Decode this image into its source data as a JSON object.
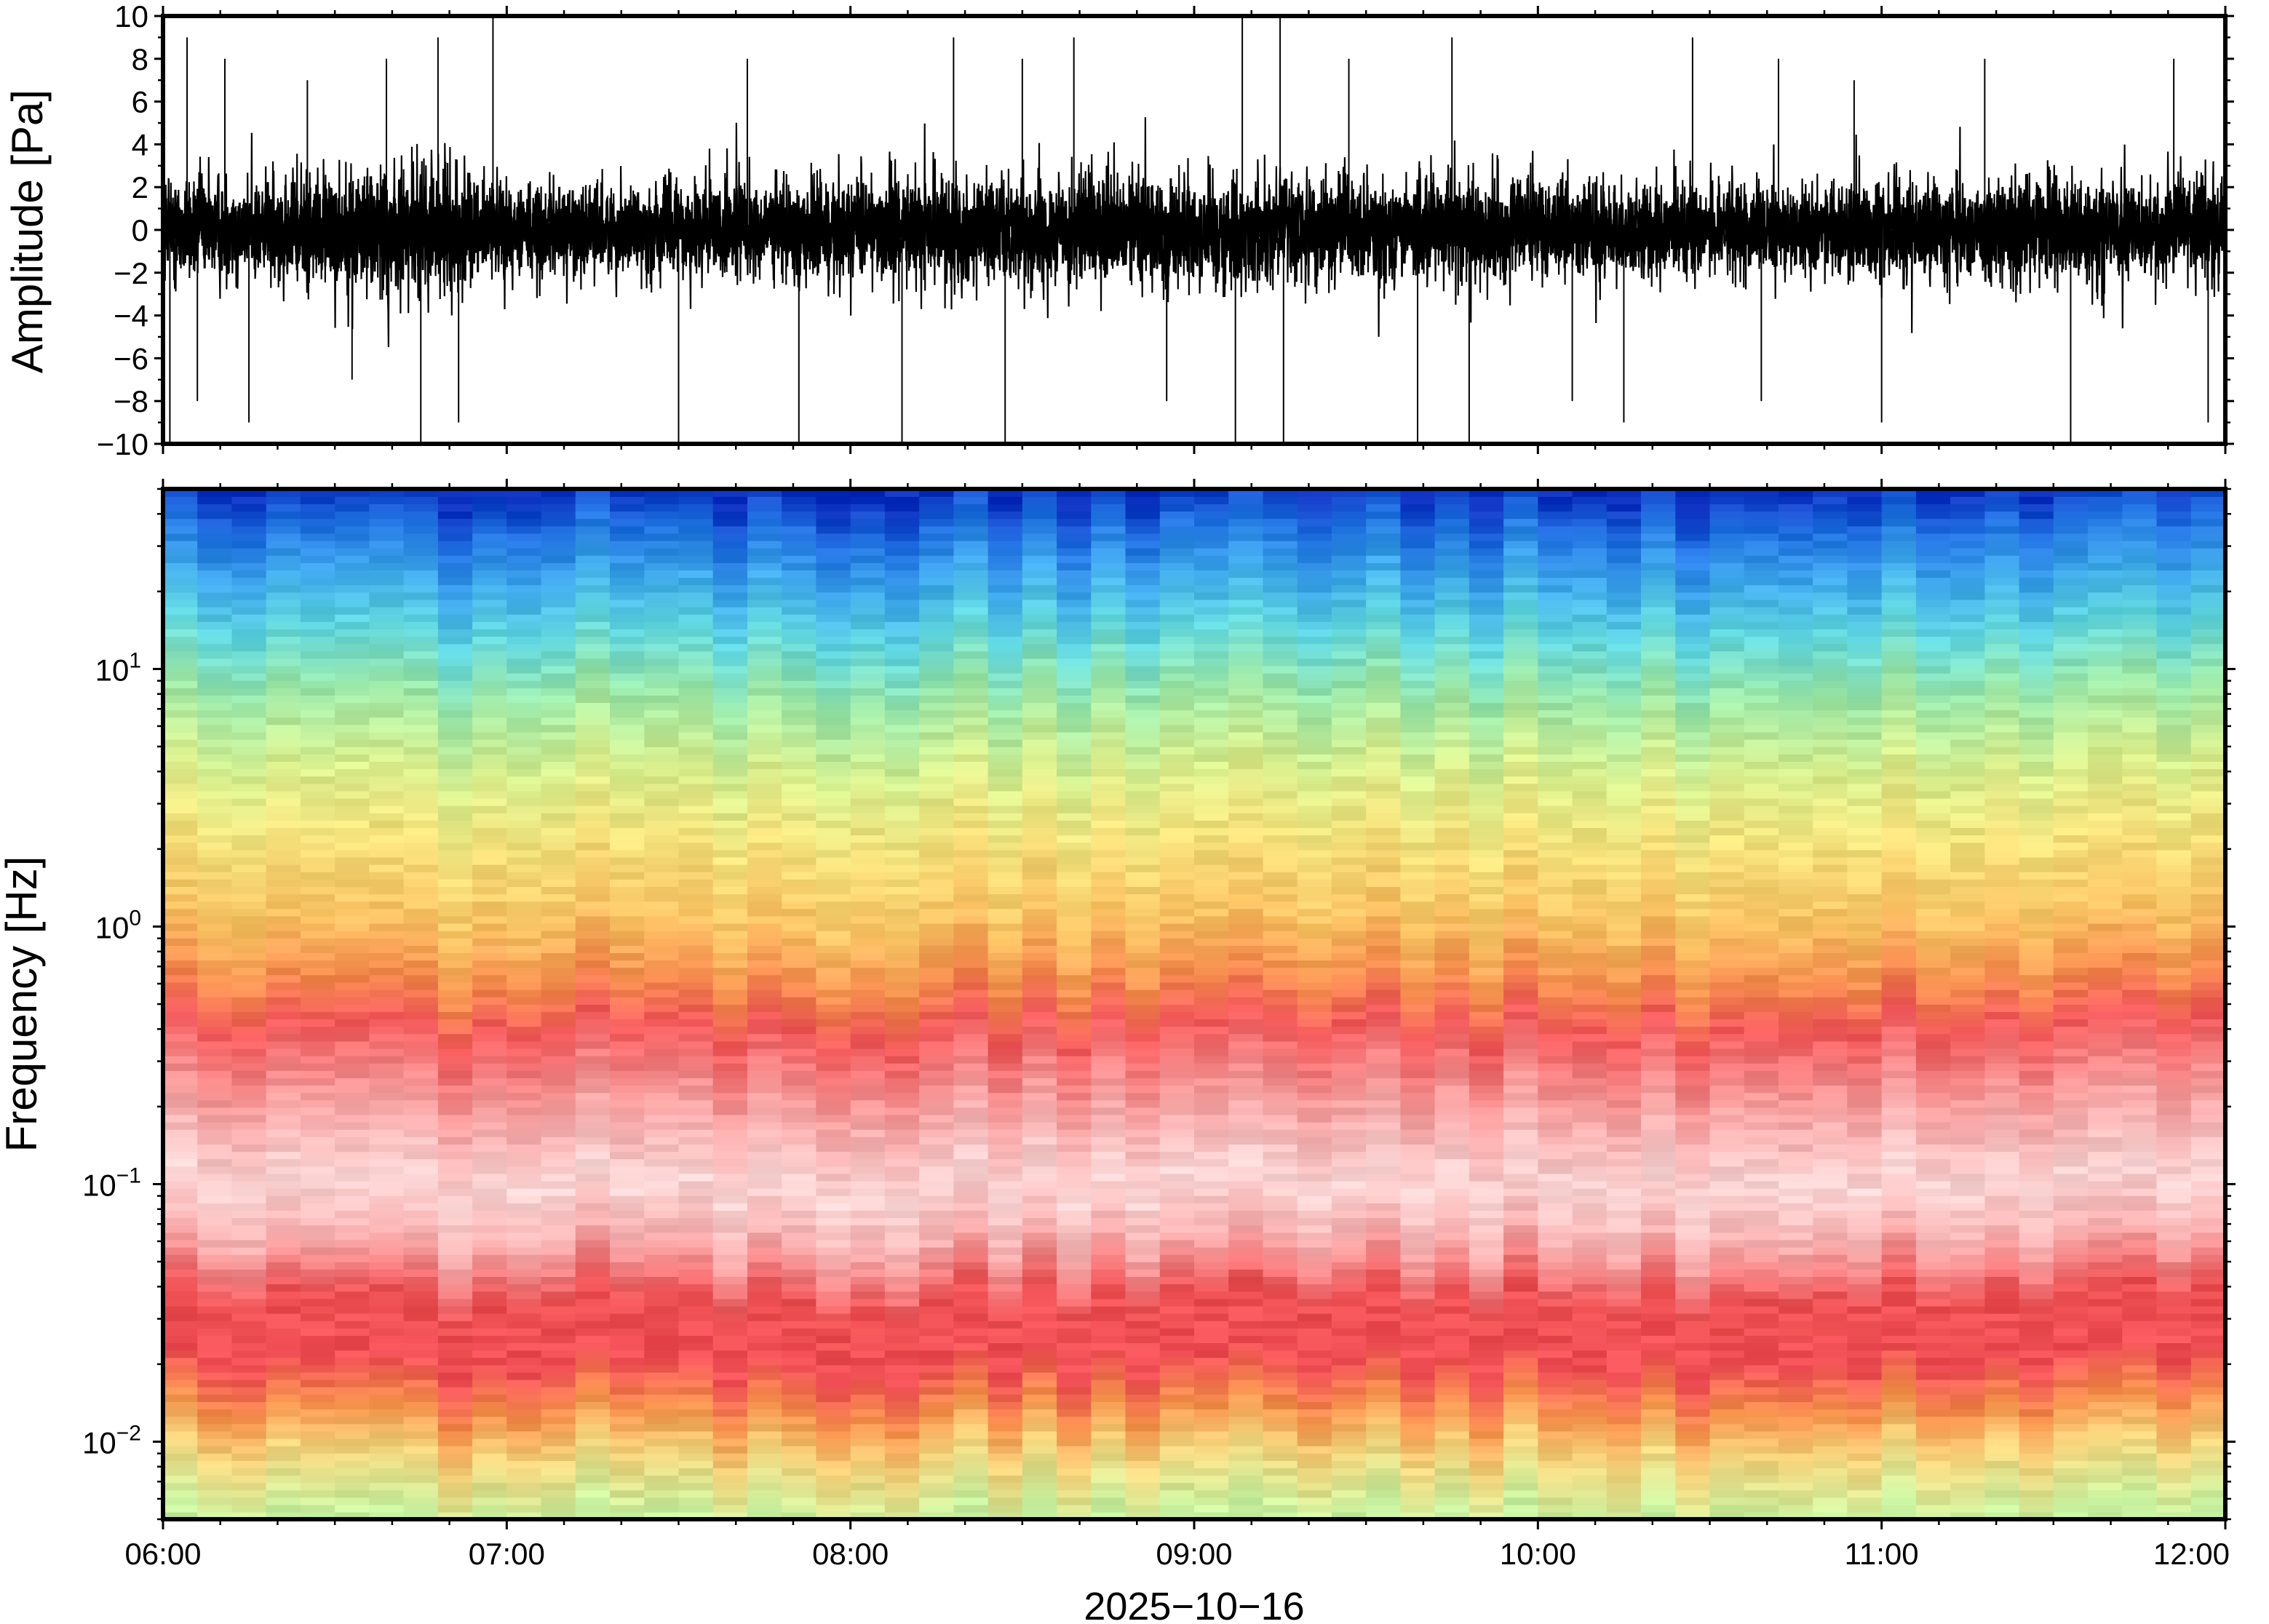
{
  "chart_data": [
    {
      "type": "line",
      "panel": "waveform",
      "ylabel": "Amplitude [Pa]",
      "ylim": [
        -10,
        10
      ],
      "yticks": [
        "10",
        "8",
        "6",
        "4",
        "2",
        "0",
        "−2",
        "−4",
        "−6",
        "−8",
        "−10"
      ],
      "ytick_values": [
        10,
        8,
        6,
        4,
        2,
        0,
        -2,
        -4,
        -6,
        -8,
        -10
      ],
      "xlim": [
        "06:00",
        "12:00"
      ],
      "line_color": "#000000",
      "envelope": {
        "hours": [
          6.0,
          6.25,
          6.5,
          6.75,
          7.0,
          7.25,
          7.5,
          7.75,
          8.0,
          8.25,
          8.5,
          8.75,
          9.0,
          9.25,
          9.5,
          9.75,
          10.0,
          10.25,
          10.5,
          10.75,
          11.0,
          11.25,
          11.5,
          11.75,
          12.0
        ],
        "typical_amplitude": [
          2.8,
          2.6,
          2.8,
          3.3,
          2.3,
          2.2,
          2.3,
          2.4,
          2.6,
          2.6,
          2.6,
          2.6,
          2.8,
          2.7,
          2.4,
          2.6,
          2.4,
          2.2,
          2.2,
          2.2,
          2.5,
          2.6,
          2.6,
          2.5,
          2.4
        ]
      },
      "spikes": [
        {
          "hour": 6.02,
          "value": -10
        },
        {
          "hour": 6.07,
          "value": 9
        },
        {
          "hour": 6.1,
          "value": -8
        },
        {
          "hour": 6.18,
          "value": 8
        },
        {
          "hour": 6.25,
          "value": -9
        },
        {
          "hour": 6.42,
          "value": 7
        },
        {
          "hour": 6.55,
          "value": -7
        },
        {
          "hour": 6.65,
          "value": 8
        },
        {
          "hour": 6.75,
          "value": -10
        },
        {
          "hour": 6.8,
          "value": 9
        },
        {
          "hour": 6.86,
          "value": -9
        },
        {
          "hour": 6.96,
          "value": 10
        },
        {
          "hour": 7.5,
          "value": -10
        },
        {
          "hour": 7.7,
          "value": 8
        },
        {
          "hour": 7.85,
          "value": -10
        },
        {
          "hour": 8.15,
          "value": -10
        },
        {
          "hour": 8.3,
          "value": 9
        },
        {
          "hour": 8.45,
          "value": -10
        },
        {
          "hour": 8.5,
          "value": 8
        },
        {
          "hour": 8.65,
          "value": 9
        },
        {
          "hour": 8.92,
          "value": -8
        },
        {
          "hour": 9.12,
          "value": -10
        },
        {
          "hour": 9.14,
          "value": 10
        },
        {
          "hour": 9.25,
          "value": 10
        },
        {
          "hour": 9.26,
          "value": -10
        },
        {
          "hour": 9.45,
          "value": 8
        },
        {
          "hour": 9.65,
          "value": -10
        },
        {
          "hour": 9.75,
          "value": 9
        },
        {
          "hour": 9.8,
          "value": -10
        },
        {
          "hour": 10.1,
          "value": -8
        },
        {
          "hour": 10.25,
          "value": -9
        },
        {
          "hour": 10.45,
          "value": 9
        },
        {
          "hour": 10.65,
          "value": -8
        },
        {
          "hour": 10.7,
          "value": 8
        },
        {
          "hour": 10.92,
          "value": 7
        },
        {
          "hour": 11.0,
          "value": -9
        },
        {
          "hour": 11.3,
          "value": 8
        },
        {
          "hour": 11.55,
          "value": -10
        },
        {
          "hour": 11.85,
          "value": 8
        },
        {
          "hour": 11.95,
          "value": -9
        }
      ]
    },
    {
      "type": "heatmap",
      "panel": "spectrogram",
      "ylabel": "Frequency [Hz]",
      "yscale": "log",
      "ylim_hz": [
        0.005,
        50
      ],
      "yticks": [
        {
          "value": 10,
          "base": "10",
          "exp": "1"
        },
        {
          "value": 1,
          "base": "10",
          "exp": "0"
        },
        {
          "value": 0.1,
          "base": "10",
          "exp": "−1"
        },
        {
          "value": 0.01,
          "base": "10",
          "exp": "−2"
        }
      ],
      "xlabel": "2025−10−16",
      "xticks": [
        "06:00",
        "07:00",
        "08:00",
        "09:00",
        "10:00",
        "11:00",
        "12:00"
      ],
      "xtick_hours": [
        6,
        7,
        8,
        9,
        10,
        11,
        12
      ],
      "xlim": [
        "06:00",
        "12:00"
      ],
      "colormap": {
        "description": "low-frequency band warm, high-frequency band blue",
        "stops": [
          {
            "hz": 50,
            "color": "#0a2fbf"
          },
          {
            "hz": 35,
            "color": "#1f6fe0"
          },
          {
            "hz": 22,
            "color": "#3ea8ea"
          },
          {
            "hz": 14,
            "color": "#5fd6df"
          },
          {
            "hz": 8,
            "color": "#9ae7a8"
          },
          {
            "hz": 4,
            "color": "#d8ee8d"
          },
          {
            "hz": 2,
            "color": "#f5e07a"
          },
          {
            "hz": 1,
            "color": "#f9bf61"
          },
          {
            "hz": 0.6,
            "color": "#f58a4e"
          },
          {
            "hz": 0.4,
            "color": "#f2585a"
          },
          {
            "hz": 0.2,
            "color": "#f7a0a0"
          },
          {
            "hz": 0.1,
            "color": "#fcd6d6"
          },
          {
            "hz": 0.06,
            "color": "#f9b0b0"
          },
          {
            "hz": 0.035,
            "color": "#ec4f52"
          },
          {
            "hz": 0.02,
            "color": "#f04f55"
          },
          {
            "hz": 0.013,
            "color": "#f6924c"
          },
          {
            "hz": 0.009,
            "color": "#f5d37b"
          },
          {
            "hz": 0.005,
            "color": "#c8f2a0"
          }
        ]
      },
      "column_count": 60
    }
  ]
}
